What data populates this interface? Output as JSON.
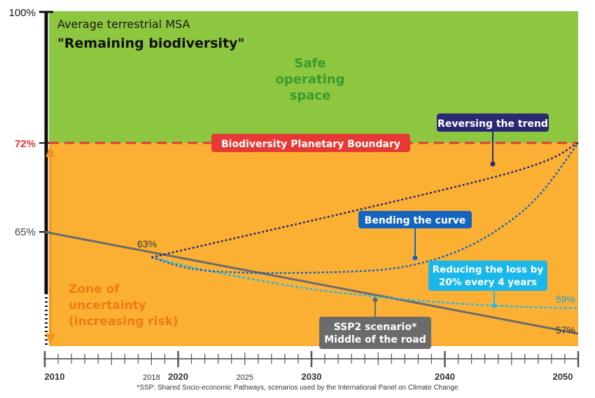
{
  "chart_data": {
    "type": "line",
    "title": "Average terrestrial MSA",
    "subtitle": "\"Remaining biodiversity\"",
    "x_ticks": [
      2010,
      2020,
      2030,
      2040,
      2050
    ],
    "x_minor_ticks": [
      2018,
      2025
    ],
    "x_tick_labels": [
      "2010",
      "2018",
      "2020",
      "2025",
      "2030",
      "2040",
      "2050"
    ],
    "xlim": [
      2010,
      2050
    ],
    "y_tick_labels": [
      "100%",
      "72%",
      "65%"
    ],
    "boundary": {
      "value": 72,
      "label": "Biodiversity Planetary Boundary",
      "tick_label": "72%"
    },
    "zones": {
      "safe": "Safe operating space",
      "uncertainty": "Zone of uncertainty (increasing risk)"
    },
    "series": [
      {
        "name": "SSP2 scenario* Middle of the road",
        "style": "solid",
        "color": "#6b6b6b",
        "points": [
          [
            2010,
            65
          ],
          [
            2050,
            57
          ]
        ],
        "end_label": "57%"
      },
      {
        "name": "Reversing the trend",
        "style": "dotted",
        "color": "#2a2a72",
        "points": [
          [
            2018,
            63
          ],
          [
            2044,
            69.4
          ],
          [
            2050,
            72
          ]
        ]
      },
      {
        "name": "Bending the curve",
        "style": "dotted",
        "color": "#1565c0",
        "points": [
          [
            2018,
            63
          ],
          [
            2021,
            62.1
          ],
          [
            2025,
            61.8
          ],
          [
            2030,
            61.8
          ],
          [
            2035,
            62.0
          ],
          [
            2038,
            62.5
          ],
          [
            2041,
            63.5
          ],
          [
            2044,
            65.2
          ],
          [
            2047,
            67.8
          ],
          [
            2050,
            72
          ]
        ]
      },
      {
        "name": "Reducing the loss by 20% every 4 years",
        "style": "dotted",
        "color": "#2ab8e8",
        "points": [
          [
            2018,
            63
          ],
          [
            2022,
            62.0
          ],
          [
            2026,
            61.2
          ],
          [
            2030,
            60.5
          ],
          [
            2034,
            60.0
          ],
          [
            2038,
            59.6
          ],
          [
            2042,
            59.3
          ],
          [
            2046,
            59.1
          ],
          [
            2050,
            59.0
          ]
        ],
        "end_label": "59%"
      }
    ],
    "start_label": "63%",
    "colors": {
      "safe": "#8dc63f",
      "uncertainty": "#fbb034",
      "boundary": "#e53935",
      "axis": "#111111",
      "arrow": "#f7941d"
    }
  },
  "footnote": "*SSP: Shared Socio-economic Pathways, scenarios used by the International Panel on Climate Change"
}
